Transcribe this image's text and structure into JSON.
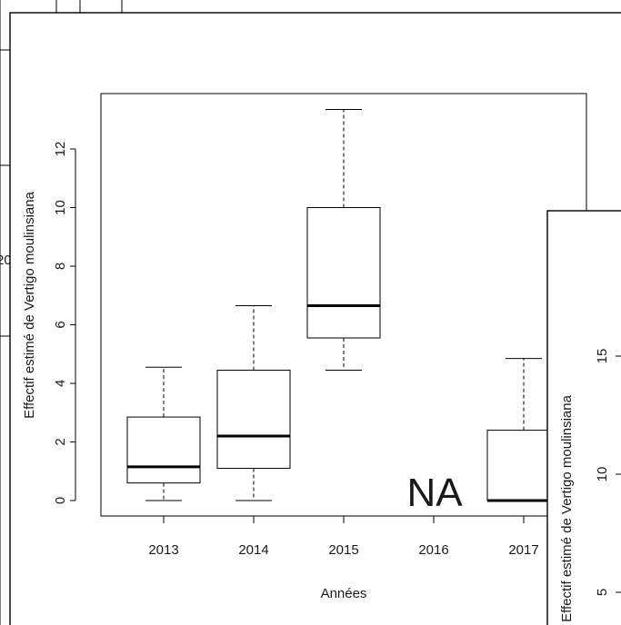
{
  "colors": {
    "background": "#ffffff",
    "ink": "#000000"
  },
  "chart_data": [
    {
      "type": "box",
      "title": "",
      "xlabel": "Années",
      "ylabel": "Effectif estimé de Vertigo moulinsiana",
      "ylim": [
        -0.5,
        13.9
      ],
      "yticks": [
        "0",
        "2",
        "4",
        "6",
        "8",
        "10",
        "12"
      ],
      "categories": [
        "2013",
        "2014",
        "2015",
        "2016",
        "2017"
      ],
      "boxes": [
        {
          "category": "2013",
          "min": 0,
          "q1": 0.6,
          "median": 1.15,
          "q3": 2.85,
          "max": 4.55
        },
        {
          "category": "2014",
          "min": 0,
          "q1": 1.1,
          "median": 2.2,
          "q3": 4.45,
          "max": 6.65
        },
        {
          "category": "2015",
          "min": 4.45,
          "q1": 5.55,
          "median": 6.65,
          "q3": 10.0,
          "max": 13.35
        },
        {
          "category": "2016",
          "missing": true
        },
        {
          "category": "2017",
          "min": 0,
          "q1": 0,
          "median": 0,
          "q3": 2.4,
          "max": 4.85
        }
      ],
      "annotations": [
        {
          "category": "2016",
          "text": "NA"
        }
      ],
      "grid": false
    },
    {
      "type": "box",
      "note_partial": "second overlapping plot window, mostly cut off",
      "ylabel": "Effectif estimé de Vertigo moulinsiana",
      "yticks": [
        "5",
        "10",
        "15"
      ]
    }
  ],
  "background_fragments": {
    "left_tick": "20"
  }
}
